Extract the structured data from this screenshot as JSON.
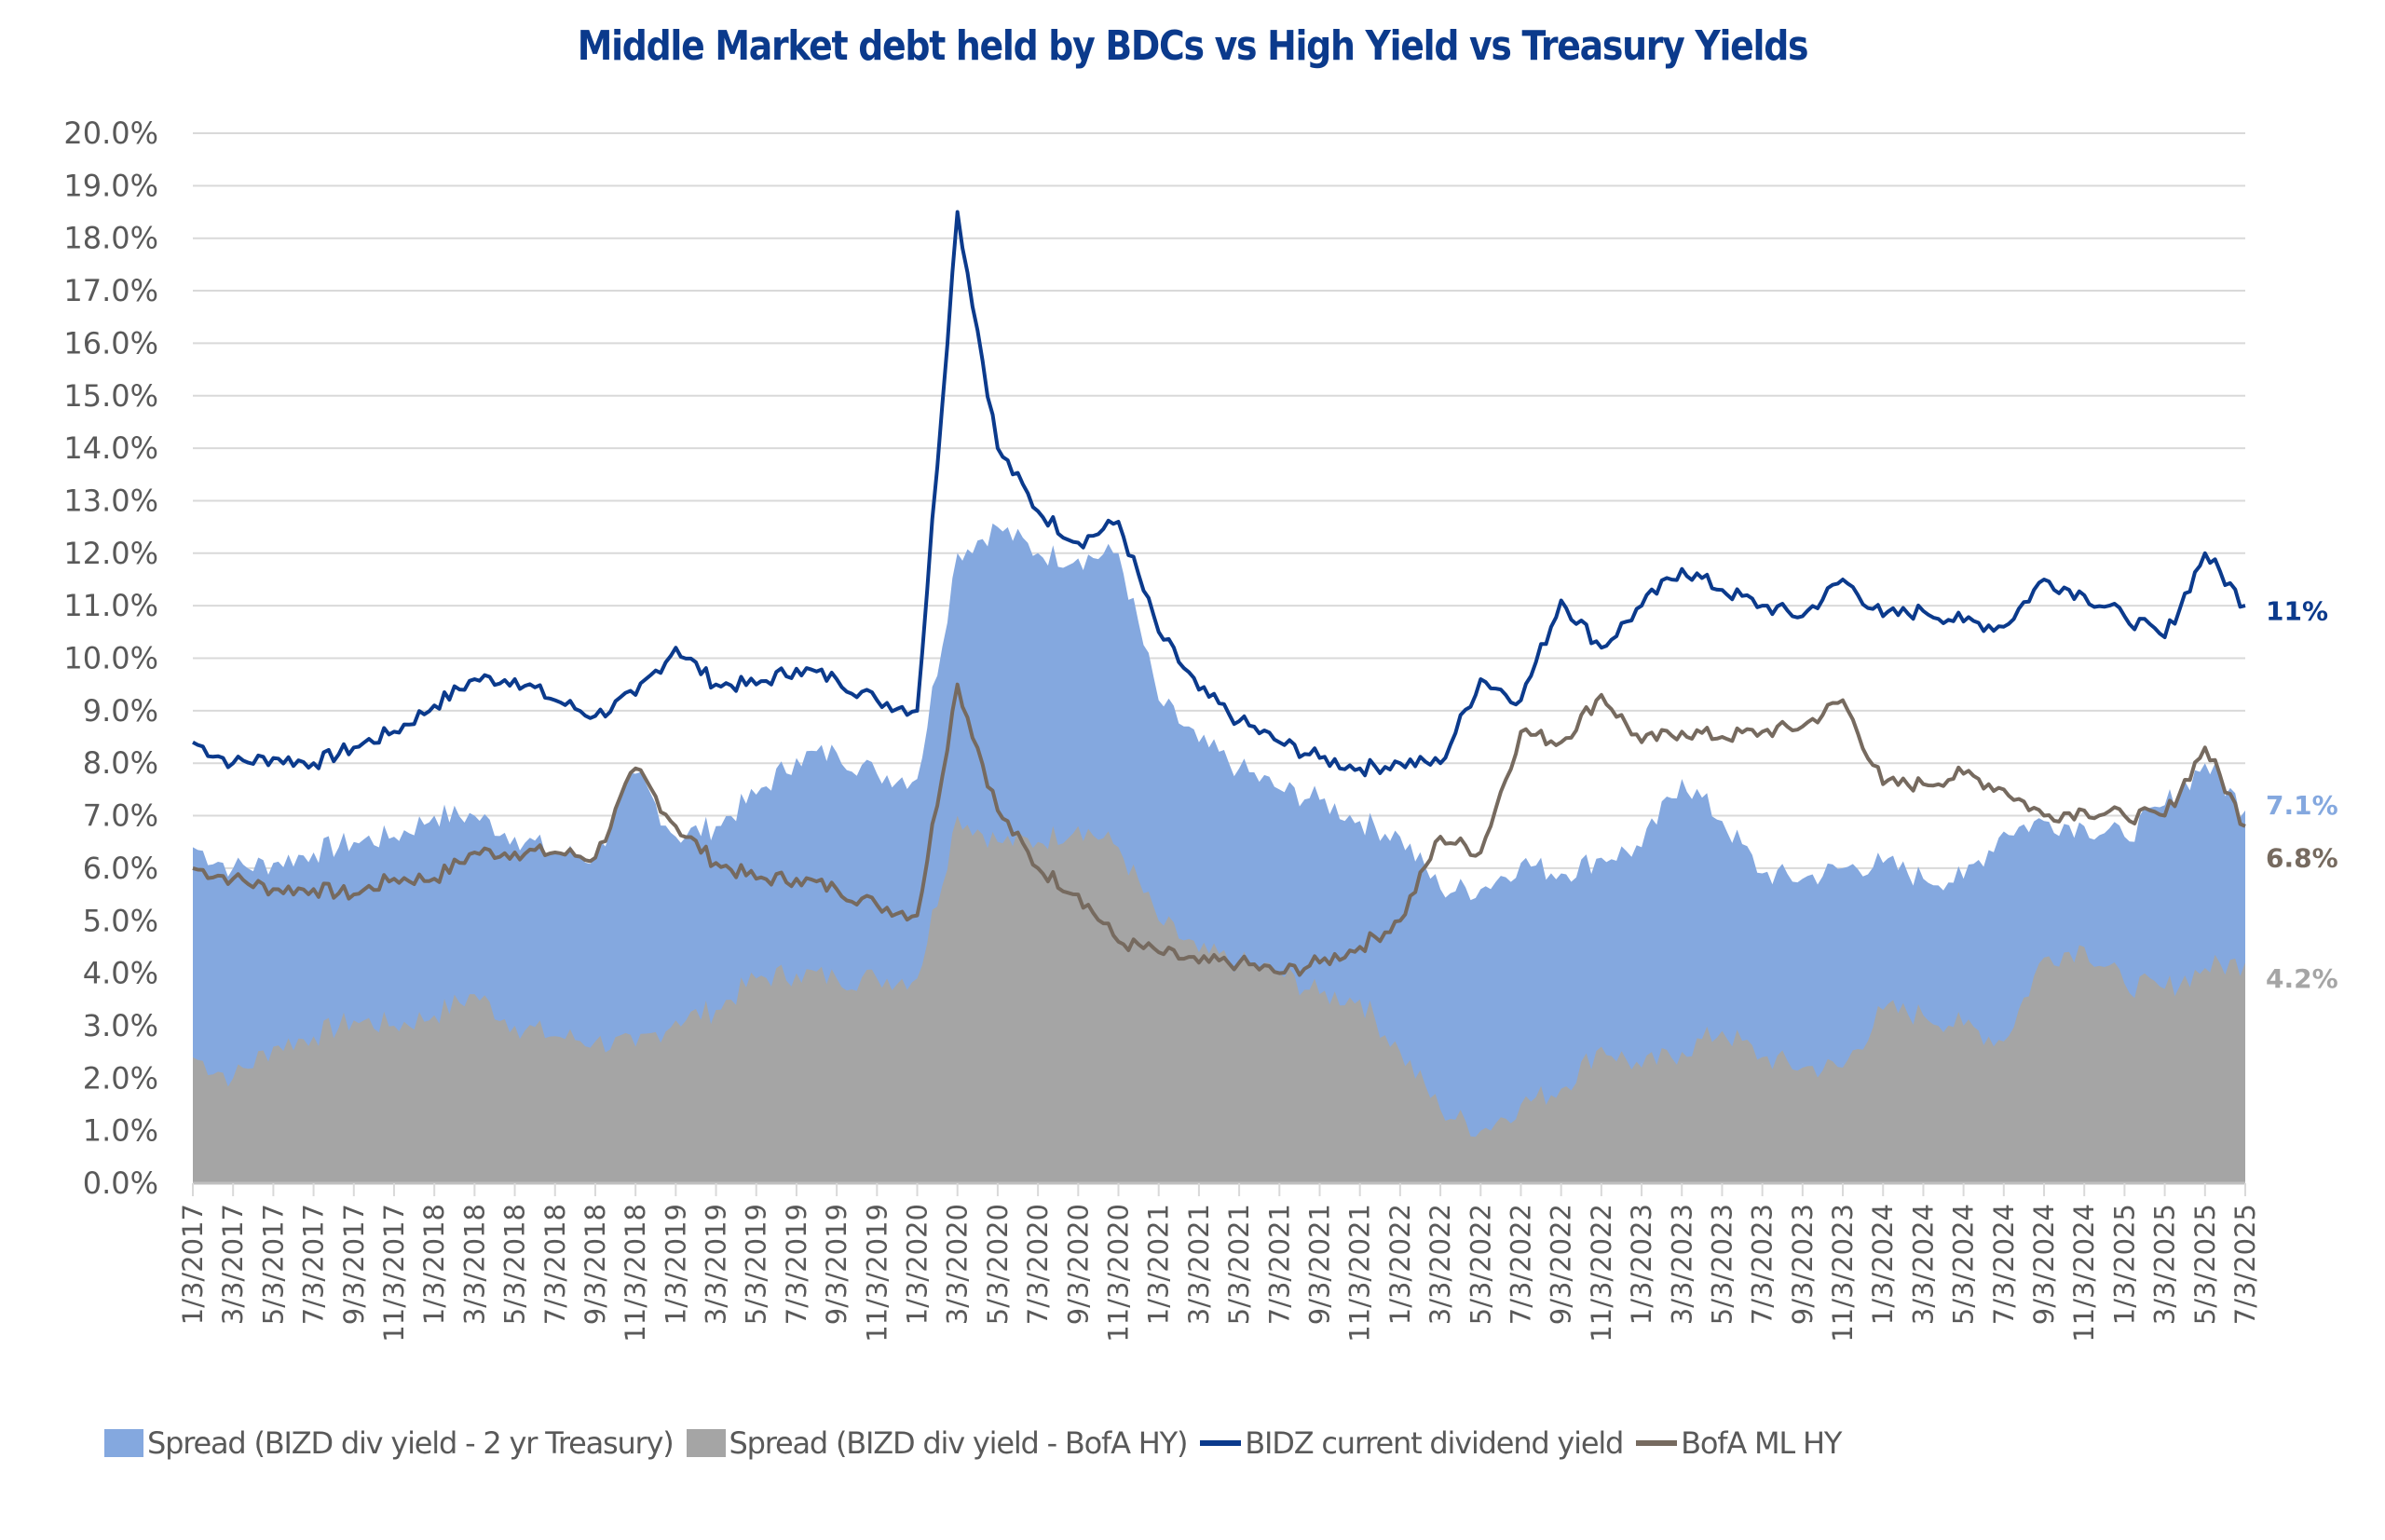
{
  "chart_data": {
    "type": "area",
    "title": "Middle Market debt held by BDCs vs High Yield vs Treasury Yields",
    "xlabel": "",
    "ylabel": "",
    "ylim": [
      0,
      20
    ],
    "y_ticks": [
      "0.0%",
      "1.0%",
      "2.0%",
      "3.0%",
      "4.0%",
      "5.0%",
      "6.0%",
      "7.0%",
      "8.0%",
      "9.0%",
      "10.0%",
      "11.0%",
      "12.0%",
      "13.0%",
      "14.0%",
      "15.0%",
      "16.0%",
      "17.0%",
      "18.0%",
      "19.0%",
      "20.0%"
    ],
    "grid": true,
    "legend_position": "bottom",
    "categories": [
      "1/3/2017",
      "3/3/2017",
      "5/3/2017",
      "7/3/2017",
      "9/3/2017",
      "11/3/2017",
      "1/3/2018",
      "3/3/2018",
      "5/3/2018",
      "7/3/2018",
      "9/3/2018",
      "11/3/2018",
      "1/3/2019",
      "3/3/2019",
      "5/3/2019",
      "7/3/2019",
      "9/3/2019",
      "11/3/2019",
      "1/3/2020",
      "3/3/2020",
      "5/3/2020",
      "7/3/2020",
      "9/3/2020",
      "11/3/2020",
      "1/3/2021",
      "3/3/2021",
      "5/3/2021",
      "7/3/2021",
      "9/3/2021",
      "11/3/2021",
      "1/3/2022",
      "3/3/2022",
      "5/3/2022",
      "7/3/2022",
      "9/3/2022",
      "11/3/2022",
      "1/3/2023",
      "3/3/2023",
      "5/3/2023",
      "7/3/2023",
      "9/3/2023",
      "11/3/2023",
      "1/3/2024",
      "3/3/2024",
      "5/3/2024",
      "7/3/2024",
      "9/3/2024",
      "11/3/2024",
      "1/3/2025",
      "3/3/2025",
      "5/3/2025",
      "7/3/2025"
    ],
    "series": [
      {
        "name": "Spread (BIZD div yield - 2 yr Treasury)",
        "kind": "area",
        "color": "#84a8df",
        "values": [
          6.4,
          6.0,
          6.1,
          6.3,
          6.5,
          6.6,
          7.0,
          7.0,
          6.6,
          6.3,
          6.2,
          7.8,
          6.6,
          6.8,
          7.4,
          8.1,
          8.2,
          7.8,
          7.7,
          12.0,
          12.5,
          12.0,
          11.9,
          12.0,
          9.2,
          8.4,
          7.9,
          7.5,
          7.3,
          6.9,
          6.6,
          5.6,
          5.6,
          6.1,
          5.9,
          6.2,
          6.4,
          7.7,
          6.9,
          5.9,
          5.8,
          6.0,
          6.1,
          5.8,
          5.8,
          6.7,
          6.9,
          6.8,
          6.6,
          7.2,
          8.0,
          7.1
        ]
      },
      {
        "name": "Spread (BIZD div yield - BofA HY)",
        "kind": "area",
        "color": "#a5a5a5",
        "values": [
          2.4,
          2.0,
          2.6,
          2.8,
          3.1,
          3.0,
          3.2,
          3.6,
          3.0,
          2.8,
          2.7,
          2.6,
          3.1,
          3.3,
          3.9,
          4.0,
          3.9,
          3.9,
          3.9,
          7.0,
          6.5,
          6.5,
          6.8,
          6.4,
          5.0,
          4.4,
          4.2,
          4.0,
          3.6,
          3.5,
          2.5,
          1.4,
          1.0,
          1.5,
          1.8,
          2.6,
          2.2,
          2.5,
          2.9,
          2.4,
          2.2,
          2.2,
          3.3,
          3.2,
          3.0,
          2.7,
          4.3,
          4.5,
          3.8,
          3.7,
          4.1,
          4.2
        ]
      },
      {
        "name": "BIDZ current dividend yield",
        "kind": "line",
        "color": "#0b3a8c",
        "values": [
          8.4,
          8.0,
          8.1,
          8.0,
          8.3,
          8.6,
          9.1,
          9.6,
          9.6,
          9.2,
          8.9,
          9.3,
          10.2,
          9.5,
          9.5,
          9.8,
          9.6,
          9.2,
          9.0,
          18.5,
          14.0,
          12.8,
          12.2,
          12.6,
          10.5,
          9.4,
          8.8,
          8.4,
          8.1,
          7.9,
          8.0,
          8.0,
          9.6,
          9.2,
          11.1,
          10.2,
          11.0,
          11.7,
          11.3,
          11.0,
          10.8,
          11.5,
          10.8,
          10.9,
          10.7,
          10.6,
          11.5,
          11.2,
          10.8,
          10.4,
          12.0,
          11.0
        ]
      },
      {
        "name": "BofA ML HY",
        "kind": "line",
        "color": "#766a5f",
        "values": [
          6.0,
          5.8,
          5.6,
          5.6,
          5.5,
          5.8,
          5.8,
          6.3,
          6.3,
          6.3,
          6.2,
          7.9,
          6.8,
          6.1,
          5.8,
          5.8,
          5.6,
          5.3,
          5.1,
          9.5,
          7.1,
          6.0,
          5.5,
          4.6,
          4.4,
          4.2,
          4.2,
          4.0,
          4.2,
          4.5,
          5.0,
          6.6,
          6.3,
          8.6,
          8.4,
          9.3,
          8.4,
          8.6,
          8.5,
          8.6,
          8.7,
          9.2,
          7.6,
          7.6,
          7.8,
          7.5,
          7.0,
          7.1,
          7.0,
          7.0,
          8.3,
          6.8
        ]
      }
    ],
    "end_labels": [
      {
        "series": "BIDZ current dividend yield",
        "text": "11%",
        "color": "#0b3a8c"
      },
      {
        "series": "Spread (BIZD div yield - 2 yr Treasury)",
        "text": "7.1%",
        "color": "#84a8df"
      },
      {
        "series": "BofA ML HY",
        "text": "6.8%",
        "color": "#766a5f"
      },
      {
        "series": "Spread (BIZD div yield - BofA HY)",
        "text": "4.2%",
        "color": "#a5a5a5"
      }
    ]
  },
  "legend": [
    {
      "label": "Spread (BIZD div yield - 2 yr Treasury)",
      "type": "box",
      "color": "#84a8df"
    },
    {
      "label": "Spread (BIZD div yield - BofA HY)",
      "type": "box",
      "color": "#a5a5a5"
    },
    {
      "label": "BIDZ current dividend yield",
      "type": "line",
      "color": "#0b3a8c"
    },
    {
      "label": "BofA ML HY",
      "type": "line",
      "color": "#766a5f"
    }
  ]
}
